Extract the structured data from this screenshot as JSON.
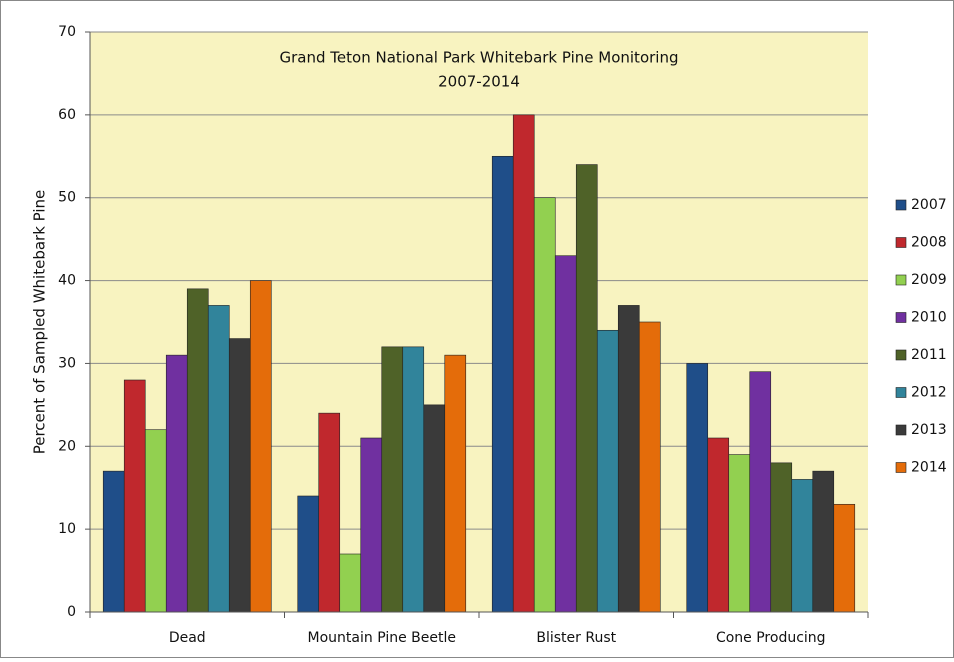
{
  "chart_data": {
    "type": "bar",
    "title": "Grand Teton National Park Whitebark Pine Monitoring",
    "subtitle": "2007-2014",
    "y_label": "Percent of Sampled Whitebark Pine",
    "categories": [
      "Dead",
      "Mountain Pine Beetle",
      "Blister Rust",
      "Cone Producing"
    ],
    "series": [
      {
        "name": "2007",
        "color": "#1f4e89",
        "values": [
          17,
          14,
          55,
          30
        ]
      },
      {
        "name": "2008",
        "color": "#c0282d",
        "values": [
          28,
          24,
          60,
          21
        ]
      },
      {
        "name": "2009",
        "color": "#92d050",
        "values": [
          22,
          7,
          50,
          19
        ]
      },
      {
        "name": "2010",
        "color": "#7030a0",
        "values": [
          31,
          21,
          43,
          29
        ]
      },
      {
        "name": "2011",
        "color": "#4f6228",
        "values": [
          39,
          32,
          54,
          18
        ]
      },
      {
        "name": "2012",
        "color": "#31849b",
        "values": [
          37,
          32,
          34,
          16
        ]
      },
      {
        "name": "2013",
        "color": "#3a3a3a",
        "values": [
          33,
          25,
          37,
          17
        ]
      },
      {
        "name": "2014",
        "color": "#e46c0a",
        "values": [
          40,
          31,
          35,
          13
        ]
      }
    ],
    "ylim": [
      0,
      70
    ],
    "yticks": [
      0,
      10,
      20,
      30,
      40,
      50,
      60,
      70
    ],
    "grid": true,
    "legend": "right"
  }
}
